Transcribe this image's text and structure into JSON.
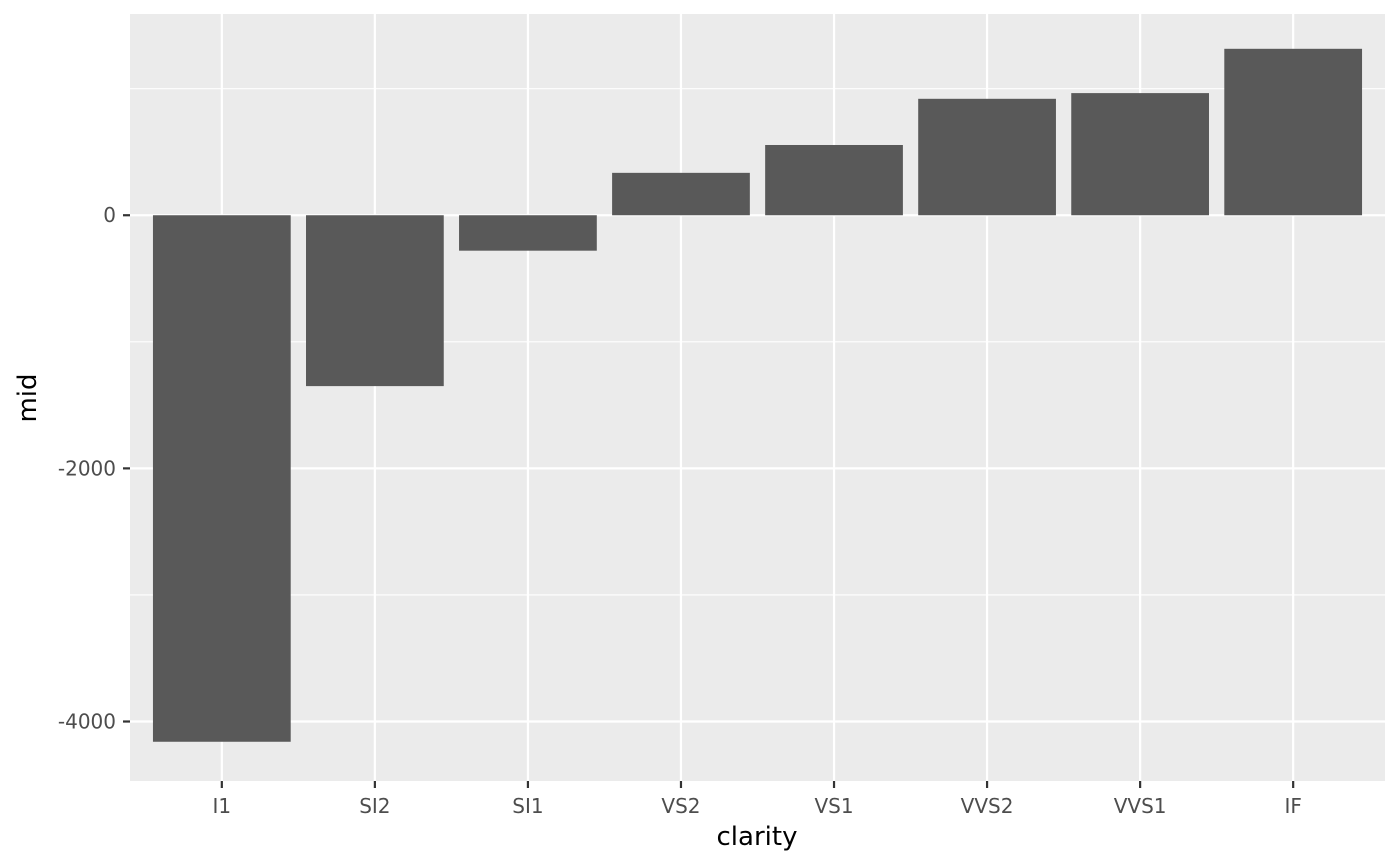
{
  "chart_data": {
    "type": "bar",
    "xlabel": "clarity",
    "ylabel": "mid",
    "categories": [
      "I1",
      "SI2",
      "SI1",
      "VS2",
      "VS1",
      "VVS2",
      "VVS1",
      "IF"
    ],
    "values": [
      -4160,
      -1350,
      -280,
      335,
      555,
      920,
      965,
      1315
    ],
    "ylim": [
      -4470,
      1590
    ],
    "y_ticks": [
      -4000,
      -2000,
      0
    ],
    "y_minor_ticks": [
      -3000,
      -1000,
      1000
    ],
    "grid": true,
    "legend": "none",
    "colors": {
      "bar": "#595959",
      "panel": "#ebebeb",
      "grid": "#ffffff",
      "tick": "#333333"
    }
  }
}
